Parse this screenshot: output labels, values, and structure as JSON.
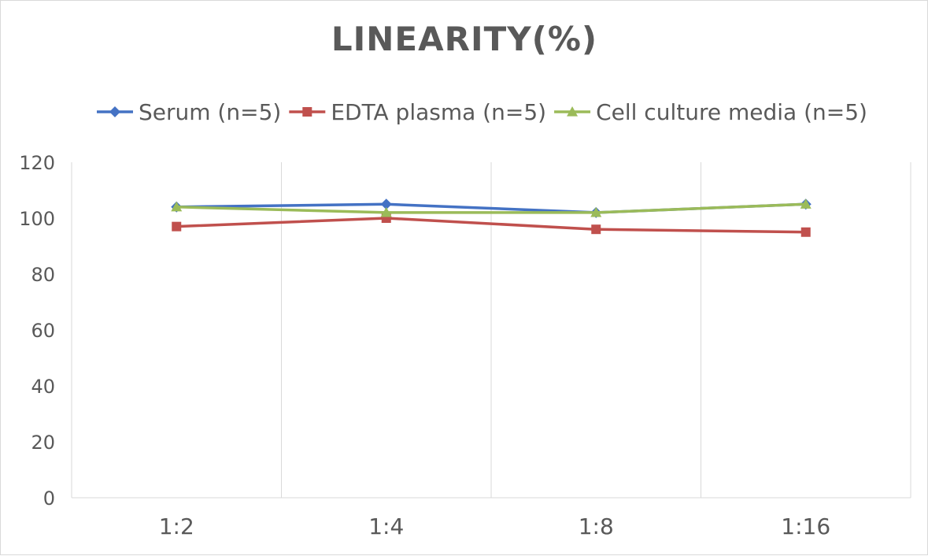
{
  "chart_data": {
    "type": "line",
    "title": "LINEARITY(%)",
    "categories": [
      "1:2",
      "1:4",
      "1:8",
      "1:16"
    ],
    "ylim": [
      0,
      120
    ],
    "yticks": [
      0,
      20,
      40,
      60,
      80,
      100,
      120
    ],
    "grid": "vertical",
    "legend_position": "top",
    "series": [
      {
        "name": "Serum (n=5)",
        "values": [
          104,
          105,
          102,
          105
        ],
        "color": "#4472C4",
        "marker": "diamond"
      },
      {
        "name": "EDTA plasma (n=5)",
        "values": [
          97,
          100,
          96,
          95
        ],
        "color": "#C0504D",
        "marker": "square"
      },
      {
        "name": "Cell culture media (n=5)",
        "values": [
          104,
          102,
          102,
          105
        ],
        "color": "#9BBB59",
        "marker": "triangle"
      }
    ]
  }
}
